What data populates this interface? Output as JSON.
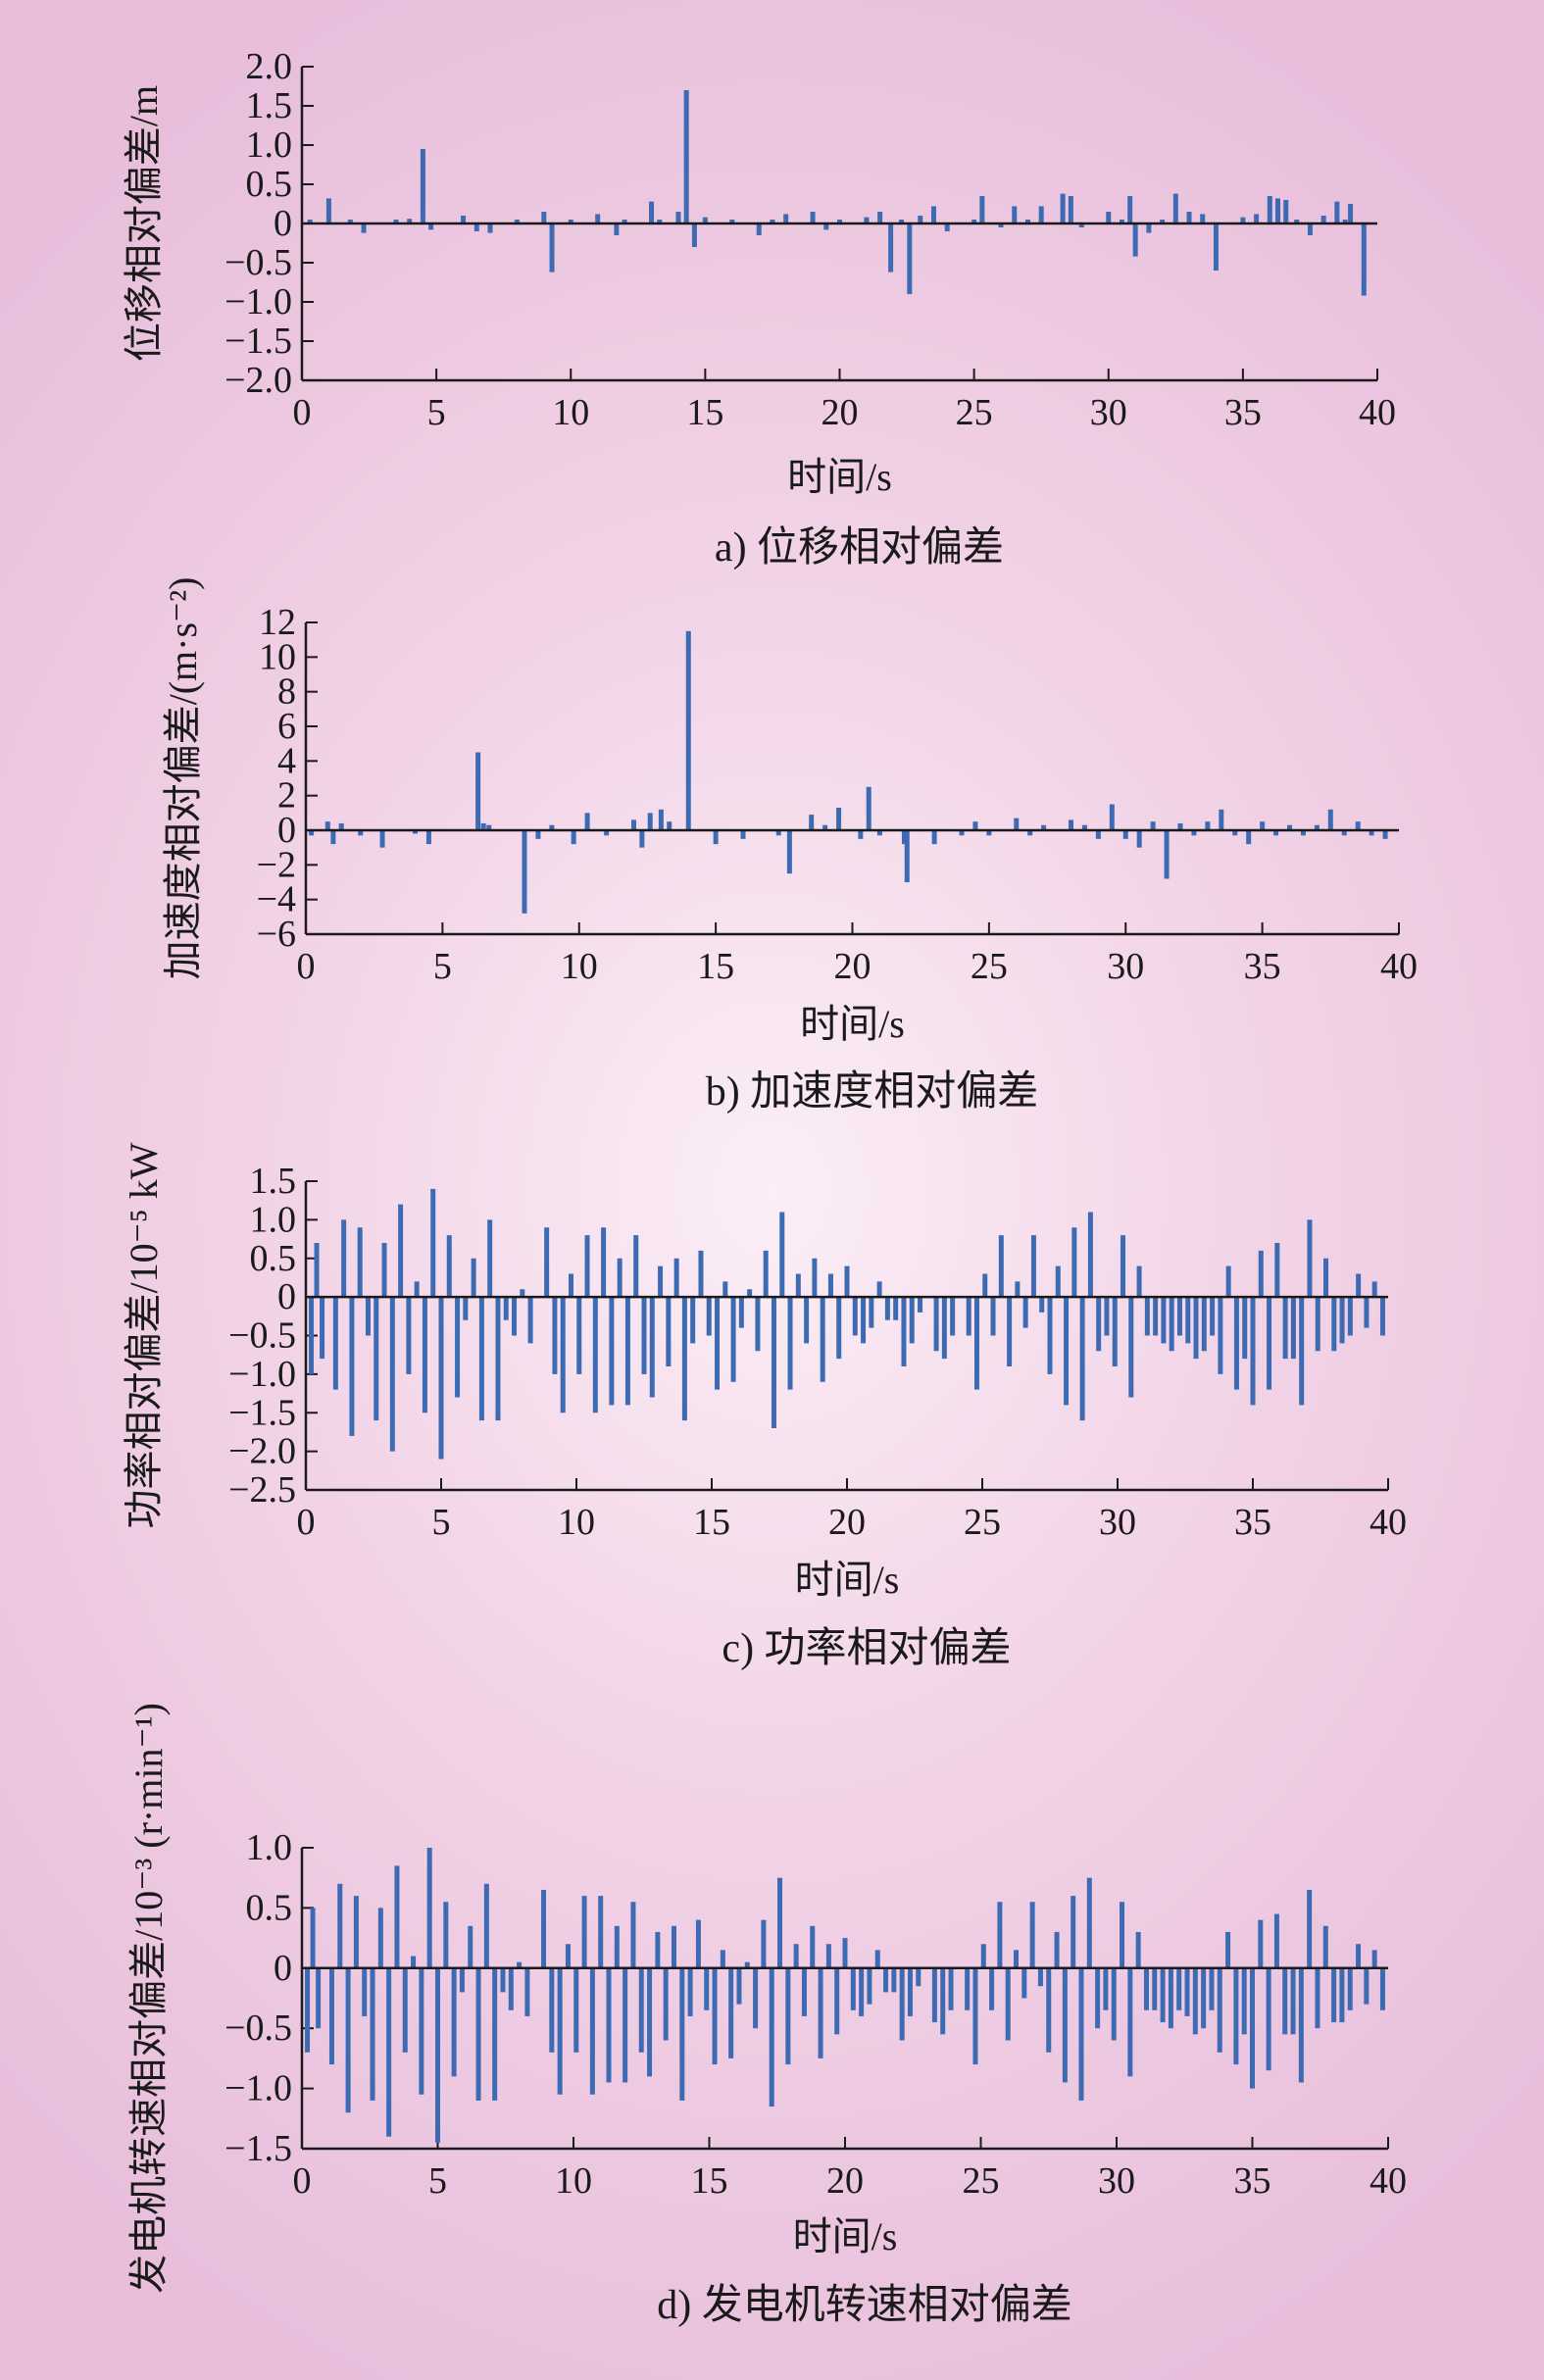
{
  "chart_data": [
    {
      "type": "bar",
      "caption": "a) 位移相对偏差",
      "xlabel": "时间/s",
      "ylabel": "位移相对偏差/m",
      "xlim": [
        0,
        40
      ],
      "ylim": [
        -2.0,
        2.0
      ],
      "xticks": [
        "0",
        "5",
        "10",
        "15",
        "20",
        "25",
        "30",
        "35",
        "40"
      ],
      "yticks": [
        "2.0",
        "1.5",
        "1.0",
        "0.5",
        "0",
        "−0.5",
        "−1.0",
        "−1.5",
        "−2.0"
      ],
      "grid": false,
      "bar_color": "#3d6bb3",
      "x": [
        0.3,
        1.0,
        1.8,
        2.3,
        3.5,
        4.0,
        4.5,
        4.8,
        6.0,
        6.5,
        7.0,
        8.0,
        9.0,
        9.3,
        10.0,
        11.0,
        11.7,
        12.0,
        13.0,
        13.3,
        14.0,
        14.3,
        14.6,
        15.0,
        16.0,
        17.0,
        17.5,
        18.0,
        19.0,
        19.5,
        20.0,
        21.0,
        21.5,
        21.9,
        22.3,
        22.6,
        23.0,
        23.5,
        24.0,
        25.0,
        25.3,
        26.0,
        26.5,
        27.0,
        27.5,
        28.3,
        28.6,
        29.0,
        30.0,
        30.5,
        30.8,
        31.0,
        31.5,
        32.0,
        32.5,
        33.0,
        33.5,
        34.0,
        35.0,
        35.5,
        36.0,
        36.3,
        36.6,
        37.0,
        37.5,
        38.0,
        38.5,
        38.8,
        39.0,
        39.5
      ],
      "values": [
        0.05,
        0.32,
        0.05,
        -0.12,
        0.05,
        0.06,
        0.95,
        -0.08,
        0.1,
        -0.1,
        -0.12,
        0.05,
        0.15,
        -0.62,
        0.05,
        0.12,
        -0.15,
        0.05,
        0.28,
        0.05,
        0.15,
        1.7,
        -0.3,
        0.08,
        0.05,
        -0.15,
        0.05,
        0.12,
        0.15,
        -0.08,
        0.05,
        0.08,
        0.15,
        -0.62,
        0.05,
        -0.9,
        0.1,
        0.22,
        -0.1,
        0.05,
        0.35,
        -0.05,
        0.22,
        0.05,
        0.22,
        0.38,
        0.35,
        -0.05,
        0.15,
        0.05,
        0.35,
        -0.42,
        -0.12,
        0.05,
        0.38,
        0.15,
        0.12,
        -0.6,
        0.08,
        0.12,
        0.35,
        0.32,
        0.3,
        0.05,
        -0.15,
        0.1,
        0.28,
        0.05,
        0.25,
        -0.92
      ]
    },
    {
      "type": "bar",
      "caption": "b) 加速度相对偏差",
      "xlabel": "时间/s",
      "ylabel": "加速度相对偏差/(m·s⁻²)",
      "xlim": [
        0,
        40
      ],
      "ylim": [
        -6,
        12
      ],
      "xticks": [
        "0",
        "5",
        "10",
        "15",
        "20",
        "25",
        "30",
        "35",
        "40"
      ],
      "yticks": [
        "12",
        "10",
        "8",
        "6",
        "4",
        "2",
        "0",
        "−2",
        "−4",
        "−6"
      ],
      "grid": false,
      "bar_color": "#3d6bb3",
      "x": [
        0.2,
        0.8,
        1.0,
        1.3,
        2.0,
        2.8,
        4.0,
        4.5,
        6.3,
        6.5,
        6.7,
        8.0,
        8.5,
        9.0,
        9.8,
        10.3,
        11.0,
        12.0,
        12.3,
        12.6,
        13.0,
        13.3,
        14.0,
        15.0,
        16.0,
        17.3,
        17.7,
        18.5,
        19.0,
        19.5,
        20.3,
        20.6,
        21.0,
        21.9,
        22.0,
        23.0,
        24.0,
        24.5,
        25.0,
        26.0,
        26.5,
        27.0,
        28.0,
        28.5,
        29.0,
        29.5,
        30.0,
        30.5,
        31.0,
        31.5,
        32.0,
        32.5,
        33.0,
        33.5,
        34.0,
        34.5,
        35.0,
        35.5,
        36.0,
        36.5,
        37.0,
        37.5,
        38.0,
        38.5,
        39.0,
        39.5
      ],
      "values": [
        -0.3,
        0.5,
        -0.8,
        0.4,
        -0.3,
        -1.0,
        -0.2,
        -0.8,
        4.5,
        0.4,
        0.3,
        -4.8,
        -0.5,
        0.3,
        -0.8,
        1.0,
        -0.3,
        0.6,
        -1.0,
        1.0,
        1.2,
        0.5,
        11.5,
        -0.8,
        -0.5,
        -0.3,
        -2.5,
        0.9,
        0.3,
        1.3,
        -0.5,
        2.5,
        -0.3,
        -0.8,
        -3.0,
        -0.8,
        -0.3,
        0.5,
        -0.3,
        0.7,
        -0.3,
        0.3,
        0.6,
        0.3,
        -0.5,
        1.5,
        -0.5,
        -1.0,
        0.5,
        -2.8,
        0.4,
        -0.3,
        0.5,
        1.2,
        -0.3,
        -0.8,
        0.5,
        -0.3,
        0.3,
        -0.3,
        0.3,
        1.2,
        -0.3,
        0.5,
        -0.3,
        -0.5
      ]
    },
    {
      "type": "bar",
      "caption": "c) 功率相对偏差",
      "xlabel": "时间/s",
      "ylabel": "功率相对偏差/10⁻⁵ kW",
      "xlim": [
        0,
        40
      ],
      "ylim": [
        -2.5,
        1.5
      ],
      "xticks": [
        "0",
        "5",
        "10",
        "15",
        "20",
        "25",
        "30",
        "35",
        "40"
      ],
      "yticks": [
        "1.5",
        "1.0",
        "0.5",
        "0",
        "−0.5",
        "−1.0",
        "−1.5",
        "−2.0",
        "−2.5"
      ],
      "grid": false,
      "bar_color": "#3d6bb3",
      "x": [
        0.2,
        0.4,
        0.6,
        1.1,
        1.4,
        1.7,
        2.0,
        2.3,
        2.6,
        2.9,
        3.2,
        3.5,
        3.8,
        4.1,
        4.4,
        4.7,
        5.0,
        5.3,
        5.6,
        5.9,
        6.2,
        6.5,
        6.8,
        7.1,
        7.4,
        7.7,
        8.0,
        8.3,
        8.6,
        8.9,
        9.2,
        9.5,
        9.8,
        10.1,
        10.4,
        10.7,
        11.0,
        11.3,
        11.6,
        11.9,
        12.2,
        12.5,
        12.8,
        13.1,
        13.4,
        13.7,
        14.0,
        14.3,
        14.6,
        14.9,
        15.2,
        15.5,
        15.8,
        16.1,
        16.4,
        16.7,
        17.0,
        17.3,
        17.6,
        17.9,
        18.2,
        18.5,
        18.8,
        19.1,
        19.4,
        19.7,
        20.0,
        20.3,
        20.6,
        20.9,
        21.2,
        21.5,
        21.8,
        22.1,
        22.4,
        22.7,
        23.0,
        23.3,
        23.6,
        23.9,
        24.2,
        24.5,
        24.8,
        25.1,
        25.4,
        25.7,
        26.0,
        26.3,
        26.6,
        26.9,
        27.2,
        27.5,
        27.8,
        28.1,
        28.4,
        28.7,
        29.0,
        29.3,
        29.6,
        29.9,
        30.2,
        30.5,
        30.8,
        31.1,
        31.4,
        31.7,
        32.0,
        32.3,
        32.6,
        32.9,
        33.2,
        33.5,
        33.8,
        34.1,
        34.4,
        34.7,
        35.0,
        35.3,
        35.6,
        35.9,
        36.2,
        36.5,
        36.8,
        37.1,
        37.4,
        37.7,
        38.0,
        38.3,
        38.6,
        38.9,
        39.2,
        39.5,
        39.8
      ],
      "values": [
        -1.0,
        0.7,
        -0.8,
        -1.2,
        1.0,
        -1.8,
        0.9,
        -0.5,
        -1.6,
        0.7,
        -2.0,
        1.2,
        -1.0,
        0.2,
        -1.5,
        1.4,
        -2.1,
        0.8,
        -1.3,
        -0.3,
        0.5,
        -1.6,
        1.0,
        -1.6,
        -0.3,
        -0.5,
        0.1,
        -0.6,
        0.0,
        0.9,
        -1.0,
        -1.5,
        0.3,
        -1.0,
        0.8,
        -1.5,
        0.9,
        -1.4,
        0.5,
        -1.4,
        0.8,
        -1.0,
        -1.3,
        0.4,
        -0.9,
        0.5,
        -1.6,
        -0.6,
        0.6,
        -0.5,
        -1.2,
        0.2,
        -1.1,
        -0.4,
        0.1,
        -0.7,
        0.6,
        -1.7,
        1.1,
        -1.2,
        0.3,
        -0.6,
        0.5,
        -1.1,
        0.3,
        -0.8,
        0.4,
        -0.5,
        -0.6,
        -0.4,
        0.2,
        -0.3,
        -0.3,
        -0.9,
        -0.6,
        -0.2,
        0.0,
        -0.7,
        -0.8,
        -0.5,
        0.0,
        -0.5,
        -1.2,
        0.3,
        -0.5,
        0.8,
        -0.9,
        0.2,
        -0.4,
        0.8,
        -0.2,
        -1.0,
        0.4,
        -1.4,
        0.9,
        -1.6,
        1.1,
        -0.7,
        -0.5,
        -0.9,
        0.8,
        -1.3,
        0.4,
        -0.5,
        -0.5,
        -0.6,
        -0.7,
        -0.5,
        -0.6,
        -0.8,
        -0.7,
        -0.5,
        -1.0,
        0.4,
        -1.2,
        -0.8,
        -1.4,
        0.6,
        -1.2,
        0.7,
        -0.8,
        -0.8,
        -1.4,
        1.0,
        -0.7,
        0.5,
        -0.7,
        -0.6,
        -0.5,
        0.3,
        -0.4,
        0.2,
        -0.5
      ]
    },
    {
      "type": "bar",
      "caption": "d) 发电机转速相对偏差",
      "xlabel": "时间/s",
      "ylabel": "发电机转速相对偏差/10⁻³ (r·min⁻¹)",
      "xlim": [
        0,
        40
      ],
      "ylim": [
        -1.5,
        1.0
      ],
      "xticks": [
        "0",
        "5",
        "10",
        "15",
        "20",
        "25",
        "30",
        "35",
        "40"
      ],
      "yticks": [
        "1.0",
        "0.5",
        "0",
        "−0.5",
        "−1.0",
        "−1.5"
      ],
      "grid": false,
      "bar_color": "#3d6bb3",
      "x": [
        0.2,
        0.4,
        0.6,
        1.1,
        1.4,
        1.7,
        2.0,
        2.3,
        2.6,
        2.9,
        3.2,
        3.5,
        3.8,
        4.1,
        4.4,
        4.7,
        5.0,
        5.3,
        5.6,
        5.9,
        6.2,
        6.5,
        6.8,
        7.1,
        7.4,
        7.7,
        8.0,
        8.3,
        8.6,
        8.9,
        9.2,
        9.5,
        9.8,
        10.1,
        10.4,
        10.7,
        11.0,
        11.3,
        11.6,
        11.9,
        12.2,
        12.5,
        12.8,
        13.1,
        13.4,
        13.7,
        14.0,
        14.3,
        14.6,
        14.9,
        15.2,
        15.5,
        15.8,
        16.1,
        16.4,
        16.7,
        17.0,
        17.3,
        17.6,
        17.9,
        18.2,
        18.5,
        18.8,
        19.1,
        19.4,
        19.7,
        20.0,
        20.3,
        20.6,
        20.9,
        21.2,
        21.5,
        21.8,
        22.1,
        22.4,
        22.7,
        23.0,
        23.3,
        23.6,
        23.9,
        24.2,
        24.5,
        24.8,
        25.1,
        25.4,
        25.7,
        26.0,
        26.3,
        26.6,
        26.9,
        27.2,
        27.5,
        27.8,
        28.1,
        28.4,
        28.7,
        29.0,
        29.3,
        29.6,
        29.9,
        30.2,
        30.5,
        30.8,
        31.1,
        31.4,
        31.7,
        32.0,
        32.3,
        32.6,
        32.9,
        33.2,
        33.5,
        33.8,
        34.1,
        34.4,
        34.7,
        35.0,
        35.3,
        35.6,
        35.9,
        36.2,
        36.5,
        36.8,
        37.1,
        37.4,
        37.7,
        38.0,
        38.3,
        38.6,
        38.9,
        39.2,
        39.5,
        39.8
      ],
      "values": [
        -0.7,
        0.5,
        -0.5,
        -0.8,
        0.7,
        -1.2,
        0.6,
        -0.4,
        -1.1,
        0.5,
        -1.4,
        0.85,
        -0.7,
        0.1,
        -1.05,
        1.0,
        -1.45,
        0.55,
        -0.9,
        -0.2,
        0.35,
        -1.1,
        0.7,
        -1.1,
        -0.2,
        -0.35,
        0.05,
        -0.4,
        0.0,
        0.65,
        -0.7,
        -1.05,
        0.2,
        -0.7,
        0.6,
        -1.05,
        0.6,
        -0.95,
        0.35,
        -0.95,
        0.55,
        -0.7,
        -0.9,
        0.3,
        -0.6,
        0.35,
        -1.1,
        -0.4,
        0.4,
        -0.35,
        -0.8,
        0.15,
        -0.75,
        -0.3,
        0.05,
        -0.5,
        0.4,
        -1.15,
        0.75,
        -0.8,
        0.2,
        -0.4,
        0.35,
        -0.75,
        0.2,
        -0.55,
        0.25,
        -0.35,
        -0.4,
        -0.3,
        0.15,
        -0.2,
        -0.2,
        -0.6,
        -0.4,
        -0.15,
        0.0,
        -0.45,
        -0.55,
        -0.35,
        0.0,
        -0.35,
        -0.8,
        0.2,
        -0.35,
        0.55,
        -0.6,
        0.15,
        -0.25,
        0.55,
        -0.15,
        -0.7,
        0.3,
        -0.95,
        0.6,
        -1.1,
        0.75,
        -0.5,
        -0.35,
        -0.6,
        0.55,
        -0.9,
        0.3,
        -0.35,
        -0.35,
        -0.45,
        -0.5,
        -0.35,
        -0.4,
        -0.55,
        -0.5,
        -0.35,
        -0.7,
        0.3,
        -0.8,
        -0.55,
        -1.0,
        0.4,
        -0.85,
        0.45,
        -0.55,
        -0.55,
        -0.95,
        0.65,
        -0.5,
        0.35,
        -0.45,
        -0.45,
        -0.35,
        0.2,
        -0.3,
        0.15,
        -0.35
      ]
    }
  ]
}
